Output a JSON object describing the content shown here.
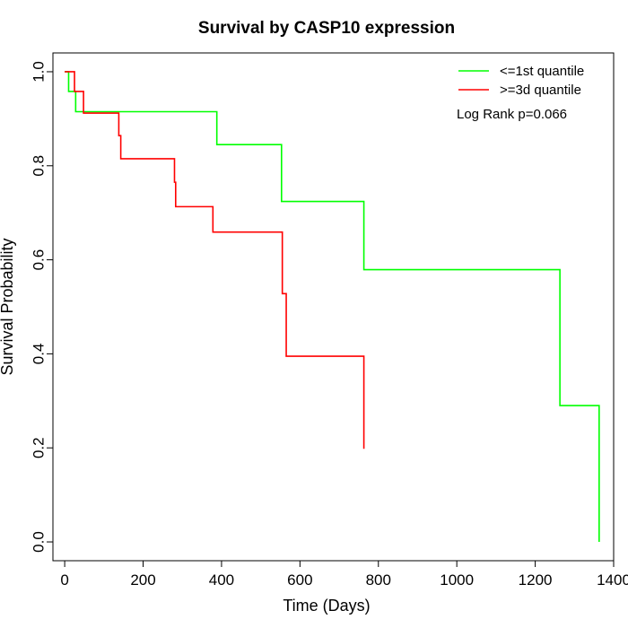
{
  "chart_data": {
    "type": "line",
    "step": true,
    "title": "Survival by CASP10 expression",
    "xlabel": "Time (Days)",
    "ylabel": "Survival Probability",
    "xlim": [
      -30,
      1400
    ],
    "ylim": [
      -0.04,
      1.04
    ],
    "xticks": [
      0,
      200,
      400,
      600,
      800,
      1000,
      1200,
      1400
    ],
    "yticks": [
      0.0,
      0.2,
      0.4,
      0.6,
      0.8,
      1.0
    ],
    "xtick_labels": [
      "0",
      "200",
      "400",
      "600",
      "800",
      "1000",
      "1200",
      "1400"
    ],
    "ytick_labels": [
      "0.0",
      "0.2",
      "0.4",
      "0.6",
      "0.8",
      "1.0"
    ],
    "legend_position": "top-right",
    "grid": false,
    "annotation": "Log Rank p=0.066",
    "series": [
      {
        "name": "<=1st quantile",
        "color": "#00ff00",
        "x": [
          0,
          10,
          28,
          388,
          553,
          763,
          1263,
          1363
        ],
        "y": [
          1.0,
          0.958,
          0.915,
          0.845,
          0.724,
          0.579,
          0.29,
          0.0
        ]
      },
      {
        "name": ">=3d quantile",
        "color": "#ff0000",
        "x": [
          0,
          25,
          48,
          138,
          143,
          280,
          283,
          378,
          555,
          565,
          763
        ],
        "y": [
          1.0,
          0.958,
          0.912,
          0.864,
          0.815,
          0.765,
          0.713,
          0.659,
          0.528,
          0.395,
          0.198
        ]
      }
    ]
  }
}
